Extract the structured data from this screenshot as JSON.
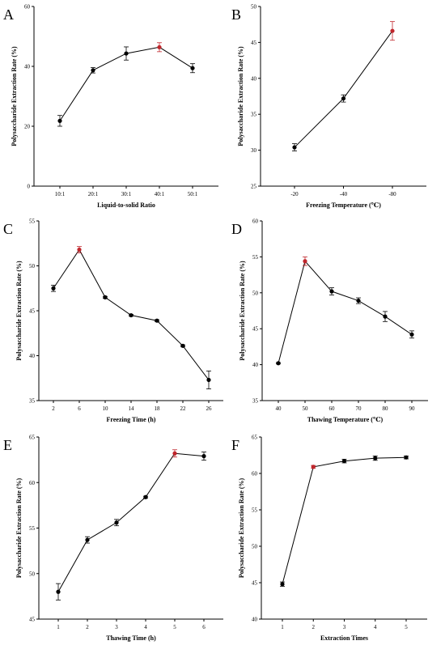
{
  "colors": {
    "normal": "#000000",
    "optimum": "#c0262c"
  },
  "chart_data": [
    {
      "type": "line",
      "letter": "A",
      "title": "",
      "xlabel": "Liquid-to-solid Ratio",
      "ylabel": "Polysaccharide Extraction Rate (%)",
      "categories": [
        "10:1",
        "20:1",
        "30:1",
        "40:1",
        "50:1"
      ],
      "values": [
        21.8,
        38.7,
        44.3,
        46.4,
        39.4
      ],
      "errors": [
        1.8,
        0.9,
        2.2,
        1.5,
        1.5
      ],
      "highlight_index": 3,
      "ylim": [
        0,
        60
      ],
      "yticks": [
        0,
        20,
        40,
        60
      ],
      "grid": false,
      "legend": "none"
    },
    {
      "type": "line",
      "letter": "B",
      "title": "",
      "xlabel": "Freezing Temperature (℃)",
      "ylabel": "Polysaccharide Extraction Rate (%)",
      "categories": [
        "-20",
        "-40",
        "-80"
      ],
      "values": [
        30.4,
        37.2,
        46.6
      ],
      "errors": [
        0.5,
        0.5,
        1.3
      ],
      "highlight_index": 2,
      "ylim": [
        25,
        50
      ],
      "yticks": [
        25,
        30,
        35,
        40,
        45,
        50
      ],
      "grid": false,
      "legend": "none"
    },
    {
      "type": "line",
      "letter": "C",
      "title": "",
      "xlabel": "Freezing Time (h)",
      "ylabel": "Polysaccharide Extraction Rate (%)",
      "categories": [
        "2",
        "6",
        "10",
        "14",
        "18",
        "22",
        "26"
      ],
      "values": [
        47.5,
        51.8,
        46.5,
        44.5,
        43.9,
        41.1,
        37.3
      ],
      "errors": [
        0.35,
        0.35,
        0.1,
        0.1,
        0.1,
        0.1,
        1.0
      ],
      "highlight_index": 1,
      "ylim": [
        35,
        55
      ],
      "yticks": [
        35,
        40,
        45,
        50,
        55
      ],
      "grid": false,
      "legend": "none"
    },
    {
      "type": "line",
      "letter": "D",
      "title": "",
      "xlabel": "Thawing Temperature (℃)",
      "ylabel": "Polysaccharide Extraction Rate (%)",
      "categories": [
        "40",
        "50",
        "60",
        "70",
        "80",
        "90"
      ],
      "values": [
        40.2,
        54.4,
        50.2,
        48.9,
        46.7,
        44.2
      ],
      "errors": [
        0.1,
        0.6,
        0.5,
        0.4,
        0.7,
        0.5
      ],
      "highlight_index": 1,
      "ylim": [
        35,
        60
      ],
      "yticks": [
        35,
        40,
        45,
        50,
        55,
        60
      ],
      "grid": false,
      "legend": "none"
    },
    {
      "type": "line",
      "letter": "E",
      "title": "",
      "xlabel": "Thawing Time (h)",
      "ylabel": "Polysaccharide Extraction Rate (%)",
      "categories": [
        "1",
        "2",
        "3",
        "4",
        "5",
        "6"
      ],
      "values": [
        48.0,
        53.7,
        55.6,
        58.4,
        63.2,
        62.9
      ],
      "errors": [
        0.9,
        0.35,
        0.35,
        0.1,
        0.4,
        0.45
      ],
      "highlight_index": 4,
      "ylim": [
        45,
        65
      ],
      "yticks": [
        45,
        50,
        55,
        60,
        65
      ],
      "grid": false,
      "legend": "none"
    },
    {
      "type": "line",
      "letter": "F",
      "title": "",
      "xlabel": "Extraction Times",
      "ylabel": "Polysaccharide Extraction Rate (%)",
      "categories": [
        "1",
        "2",
        "3",
        "4",
        "5"
      ],
      "values": [
        44.8,
        60.9,
        61.7,
        62.1,
        62.2
      ],
      "errors": [
        0.3,
        0.2,
        0.25,
        0.3,
        0.2
      ],
      "highlight_index": 1,
      "ylim": [
        40,
        65
      ],
      "yticks": [
        40,
        45,
        50,
        55,
        60,
        65
      ],
      "grid": false,
      "legend": "none"
    }
  ]
}
